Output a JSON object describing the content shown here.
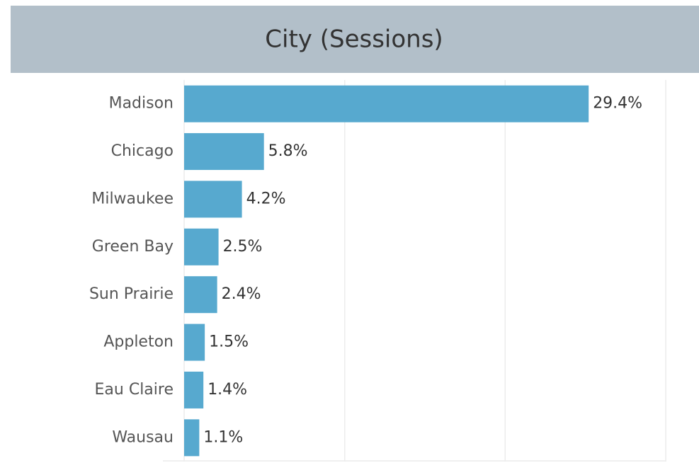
{
  "chart_data": {
    "type": "bar",
    "orientation": "horizontal",
    "title": "City (Sessions)",
    "categories": [
      "Madison",
      "Chicago",
      "Milwaukee",
      "Green Bay",
      "Sun Prairie",
      "Appleton",
      "Eau Claire",
      "Wausau"
    ],
    "values": [
      29.4,
      5.8,
      4.2,
      2.5,
      2.4,
      1.5,
      1.4,
      1.1
    ],
    "value_labels": [
      "29.4%",
      "5.8%",
      "4.2%",
      "2.5%",
      "2.4%",
      "1.5%",
      "1.4%",
      "1.1%"
    ],
    "color": "#57a9cf",
    "xlim": [
      0,
      35
    ],
    "xticks": [
      0,
      11.67,
      23.33,
      35
    ],
    "grid": true
  }
}
